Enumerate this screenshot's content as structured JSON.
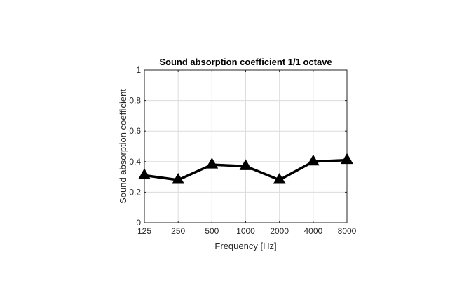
{
  "chart_data": {
    "type": "line",
    "title": "Sound absorption coefficient 1/1 octave",
    "xlabel": "Frequency [Hz]",
    "ylabel": "Sound absorption coefficient",
    "categories": [
      "125",
      "250",
      "500",
      "1000",
      "2000",
      "4000",
      "8000"
    ],
    "series": [
      {
        "values": [
          0.31,
          0.28,
          0.38,
          0.37,
          0.28,
          0.4,
          0.41
        ],
        "color": "#000000",
        "marker": "triangle"
      }
    ],
    "ylim": [
      0,
      1
    ],
    "yticks": [
      0,
      0.2,
      0.4,
      0.6,
      0.8,
      1
    ],
    "ytick_labels": [
      "0",
      "0.2",
      "0.4",
      "0.6",
      "0.8",
      "1"
    ],
    "grid": true,
    "colors": {
      "axis": "#262626",
      "grid": "#dcdcdc",
      "line": "#000000",
      "background": "#ffffff"
    }
  }
}
